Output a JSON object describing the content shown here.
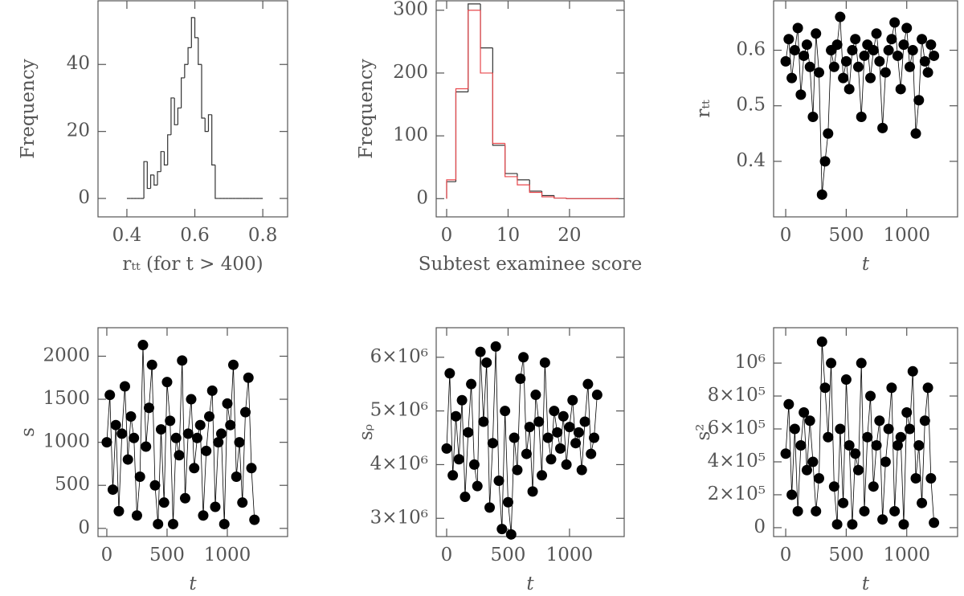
{
  "chart_data": [
    {
      "type": "histogram",
      "xlabel": "rₜₜ (for t > 400)",
      "ylabel": "Frequency",
      "xlim": [
        0.315,
        0.873
      ],
      "ylim": [
        -5.5,
        59
      ],
      "xticks": [
        0.4,
        0.6,
        0.8
      ],
      "yticks": [
        0,
        20,
        40
      ],
      "bins": [
        0.4,
        0.41,
        0.42,
        0.43,
        0.44,
        0.45,
        0.46,
        0.47,
        0.48,
        0.49,
        0.5,
        0.51,
        0.52,
        0.53,
        0.54,
        0.55,
        0.56,
        0.57,
        0.58,
        0.59,
        0.6,
        0.61,
        0.62,
        0.63,
        0.64,
        0.65,
        0.66,
        0.67,
        0.68,
        0.69,
        0.7,
        0.71,
        0.72,
        0.73,
        0.74,
        0.75,
        0.76,
        0.77,
        0.78,
        0.79,
        0.8
      ],
      "series": [
        {
          "color": "#333333",
          "values": [
            0,
            0,
            0,
            0,
            0,
            11,
            3,
            7,
            4,
            8,
            14,
            10,
            19,
            30,
            22,
            27,
            36,
            40,
            45,
            54,
            48,
            40,
            24,
            20,
            25,
            10,
            0,
            0,
            0,
            0,
            0,
            0,
            0,
            0,
            0,
            0,
            0,
            0,
            0,
            0
          ]
        }
      ]
    },
    {
      "type": "histogram",
      "xlabel": "Subtest examinee score",
      "ylabel": "Frequency",
      "xlim": [
        -1.7,
        28.9
      ],
      "ylim": [
        -29,
        315
      ],
      "xticks": [
        0,
        10,
        20
      ],
      "yticks": [
        0,
        100,
        200,
        300
      ],
      "bins": [
        0,
        1.5,
        3.5,
        5.5,
        7.5,
        9.5,
        11.5,
        13.5,
        15.5,
        17.5,
        19.5,
        28
      ],
      "series": [
        {
          "color": "#333333",
          "values": [
            27,
            170,
            310,
            240,
            85,
            40,
            30,
            12,
            5,
            1,
            0
          ]
        },
        {
          "color": "#e8474c",
          "values": [
            30,
            175,
            300,
            200,
            88,
            35,
            22,
            10,
            3,
            1,
            0
          ]
        }
      ]
    },
    {
      "type": "scatter",
      "xlabel": "t",
      "ylabel": "rₜₜ",
      "color": "#000000",
      "xlim": [
        -100,
        1420
      ],
      "ylim": [
        0.3,
        0.689
      ],
      "xticks": [
        0,
        500,
        1000
      ],
      "yticks": [
        0.4,
        0.5,
        0.6
      ],
      "x": [
        0,
        25,
        50,
        75,
        100,
        125,
        150,
        175,
        200,
        225,
        250,
        275,
        300,
        325,
        350,
        375,
        400,
        425,
        450,
        475,
        500,
        525,
        550,
        575,
        600,
        625,
        650,
        675,
        700,
        725,
        750,
        775,
        800,
        825,
        850,
        875,
        900,
        925,
        950,
        975,
        1000,
        1025,
        1050,
        1075,
        1100,
        1125,
        1150,
        1175,
        1200,
        1225
      ],
      "values": [
        0.58,
        0.62,
        0.55,
        0.6,
        0.64,
        0.52,
        0.59,
        0.61,
        0.57,
        0.48,
        0.63,
        0.56,
        0.34,
        0.4,
        0.45,
        0.6,
        0.57,
        0.61,
        0.66,
        0.55,
        0.58,
        0.53,
        0.6,
        0.62,
        0.57,
        0.48,
        0.59,
        0.61,
        0.55,
        0.6,
        0.63,
        0.58,
        0.46,
        0.56,
        0.6,
        0.62,
        0.65,
        0.59,
        0.53,
        0.61,
        0.64,
        0.57,
        0.6,
        0.45,
        0.51,
        0.62,
        0.58,
        0.56,
        0.61,
        0.59
      ]
    },
    {
      "type": "scatter",
      "xlabel": "t",
      "ylabel": "s",
      "color": "#000000",
      "xlim": [
        -73,
        1500
      ],
      "ylim": [
        -95,
        2331
      ],
      "xticks": [
        0,
        500,
        1000
      ],
      "yticks": [
        0,
        500,
        1000,
        1500,
        2000
      ],
      "x": [
        0,
        25,
        50,
        75,
        100,
        125,
        150,
        175,
        200,
        225,
        250,
        275,
        300,
        325,
        350,
        375,
        400,
        425,
        450,
        475,
        500,
        525,
        550,
        575,
        600,
        625,
        650,
        675,
        700,
        725,
        750,
        775,
        800,
        825,
        850,
        875,
        900,
        925,
        950,
        975,
        1000,
        1025,
        1050,
        1075,
        1100,
        1125,
        1150,
        1175,
        1200,
        1225
      ],
      "values": [
        1000,
        1550,
        450,
        1200,
        200,
        1100,
        1650,
        800,
        1300,
        1050,
        150,
        600,
        2130,
        950,
        1400,
        1900,
        500,
        50,
        1150,
        300,
        1700,
        1250,
        50,
        1050,
        850,
        1950,
        350,
        1100,
        1500,
        700,
        1050,
        1200,
        150,
        900,
        1300,
        1600,
        250,
        1000,
        1100,
        50,
        1450,
        1200,
        1900,
        600,
        1000,
        300,
        1350,
        1750,
        700,
        100
      ]
    },
    {
      "type": "scatter",
      "xlabel": "t",
      "ylabel": "sᵨ",
      "color": "#000000",
      "xlim": [
        -85,
        1445
      ],
      "ylim": [
        2660000,
        6550000
      ],
      "xticks": [
        0,
        500,
        1000
      ],
      "yticks": [
        {
          "value": 3000000,
          "label": "3×10⁶"
        },
        {
          "value": 4000000,
          "label": "4×10⁶"
        },
        {
          "value": 5000000,
          "label": "5×10⁶"
        },
        {
          "value": 6000000,
          "label": "6×10⁶"
        }
      ],
      "x": [
        0,
        25,
        50,
        75,
        100,
        125,
        150,
        175,
        200,
        225,
        250,
        275,
        300,
        325,
        350,
        375,
        400,
        425,
        450,
        475,
        500,
        525,
        550,
        575,
        600,
        625,
        650,
        675,
        700,
        725,
        750,
        775,
        800,
        825,
        850,
        875,
        900,
        925,
        950,
        975,
        1000,
        1025,
        1050,
        1075,
        1100,
        1125,
        1150,
        1175,
        1200,
        1225
      ],
      "values": [
        4300000,
        5700000,
        3800000,
        4900000,
        4100000,
        5200000,
        3400000,
        4600000,
        5500000,
        4000000,
        3600000,
        6100000,
        4800000,
        5900000,
        3200000,
        4400000,
        6200000,
        3700000,
        2800000,
        5000000,
        3300000,
        2700000,
        4500000,
        3900000,
        5600000,
        6000000,
        4200000,
        4700000,
        3500000,
        5300000,
        4800000,
        3800000,
        5900000,
        4500000,
        4100000,
        5000000,
        4600000,
        4300000,
        4900000,
        4000000,
        4700000,
        5200000,
        4400000,
        4600000,
        3900000,
        4800000,
        5500000,
        4200000,
        4500000,
        5300000
      ]
    },
    {
      "type": "scatter",
      "xlabel": "t",
      "ylabel": "s²",
      "color": "#000000",
      "xlim": [
        -100,
        1420
      ],
      "ylim": [
        -54000,
        1215000
      ],
      "xticks": [
        0,
        500,
        1000
      ],
      "yticks": [
        0,
        {
          "value": 200000,
          "label": "2×10⁵"
        },
        {
          "value": 400000,
          "label": "4×10⁵"
        },
        {
          "value": 600000,
          "label": "6×10⁵"
        },
        {
          "value": 800000,
          "label": "8×10⁵"
        },
        {
          "value": 1000000,
          "label": "10⁶"
        }
      ],
      "x": [
        0,
        25,
        50,
        75,
        100,
        125,
        150,
        175,
        200,
        225,
        250,
        275,
        300,
        325,
        350,
        375,
        400,
        425,
        450,
        475,
        500,
        525,
        550,
        575,
        600,
        625,
        650,
        675,
        700,
        725,
        750,
        775,
        800,
        825,
        850,
        875,
        900,
        925,
        950,
        975,
        1000,
        1025,
        1050,
        1075,
        1100,
        1125,
        1150,
        1175,
        1200,
        1225
      ],
      "values": [
        450000,
        750000,
        200000,
        600000,
        100000,
        500000,
        700000,
        350000,
        650000,
        400000,
        100000,
        300000,
        1130000,
        850000,
        550000,
        1000000,
        250000,
        20000,
        600000,
        150000,
        900000,
        500000,
        20000,
        450000,
        350000,
        1000000,
        100000,
        550000,
        800000,
        250000,
        500000,
        650000,
        50000,
        400000,
        600000,
        850000,
        100000,
        500000,
        550000,
        20000,
        700000,
        600000,
        950000,
        300000,
        500000,
        150000,
        650000,
        850000,
        300000,
        30000
      ]
    }
  ]
}
